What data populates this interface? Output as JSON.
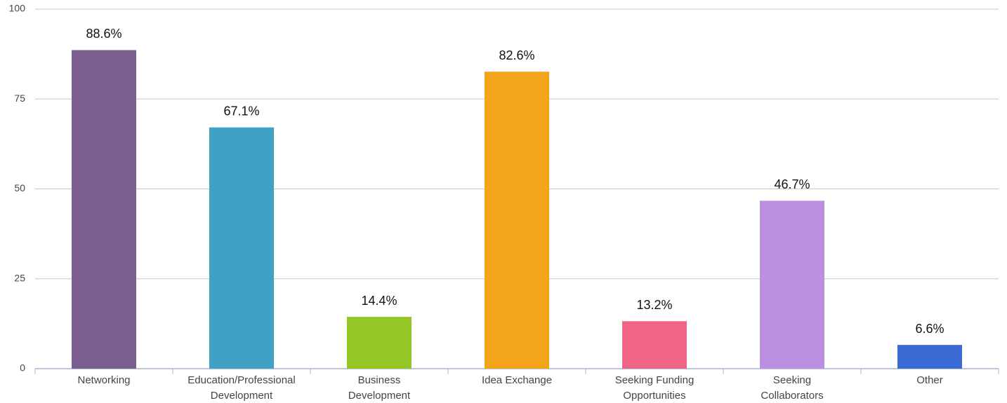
{
  "chart_data": {
    "type": "bar",
    "categories": [
      [
        "Networking"
      ],
      [
        "Education/Professional",
        "Development"
      ],
      [
        "Business",
        "Development"
      ],
      [
        "Idea Exchange"
      ],
      [
        "Seeking Funding",
        "Opportunities"
      ],
      [
        "Seeking",
        "Collaborators"
      ],
      [
        "Other"
      ]
    ],
    "values": [
      88.6,
      67.1,
      14.4,
      82.6,
      13.2,
      46.7,
      6.6
    ],
    "value_labels": [
      "88.6%",
      "67.1%",
      "14.4%",
      "82.6%",
      "13.2%",
      "46.7%",
      "6.6%"
    ],
    "colors": [
      "#7b5f91",
      "#3fa2c4",
      "#94c726",
      "#f4a41a",
      "#f06585",
      "#bc8fe0",
      "#3a6bd4"
    ],
    "ylim": [
      0,
      100
    ],
    "yticks": [
      0,
      25,
      50,
      75,
      100
    ],
    "grid": true
  }
}
